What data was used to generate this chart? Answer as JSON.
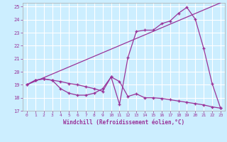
{
  "xlabel": "Windchill (Refroidissement éolien,°C)",
  "bg_color": "#cceeff",
  "grid_color": "#ffffff",
  "line_color": "#993399",
  "xlim": [
    -0.5,
    23.5
  ],
  "ylim": [
    17,
    25.3
  ],
  "xticks": [
    0,
    1,
    2,
    3,
    4,
    5,
    6,
    7,
    8,
    9,
    10,
    11,
    12,
    13,
    14,
    15,
    16,
    17,
    18,
    19,
    20,
    21,
    22,
    23
  ],
  "yticks": [
    17,
    18,
    19,
    20,
    21,
    22,
    23,
    24,
    25
  ],
  "series1_x": [
    0,
    23
  ],
  "series1_y": [
    19.0,
    25.3
  ],
  "series2_x": [
    0,
    1,
    2,
    3,
    4,
    5,
    6,
    7,
    8,
    9,
    10,
    11,
    12,
    13,
    14,
    15,
    16,
    17,
    18,
    19,
    20,
    21,
    22,
    23
  ],
  "series2_y": [
    19.0,
    19.35,
    19.45,
    19.35,
    18.7,
    18.35,
    18.2,
    18.2,
    18.35,
    18.7,
    19.6,
    17.5,
    21.1,
    23.1,
    23.2,
    23.2,
    23.7,
    23.9,
    24.5,
    24.95,
    24.05,
    21.8,
    19.1,
    17.2
  ],
  "series3_x": [
    0,
    1,
    2,
    3,
    4,
    5,
    6,
    7,
    8,
    9,
    10,
    11,
    12,
    13,
    14,
    15,
    16,
    17,
    18,
    19,
    20,
    21,
    22,
    23
  ],
  "series3_y": [
    19.0,
    19.35,
    19.45,
    19.35,
    19.25,
    19.1,
    19.0,
    18.85,
    18.7,
    18.5,
    19.6,
    19.25,
    18.1,
    18.3,
    18.0,
    18.0,
    17.95,
    17.85,
    17.75,
    17.65,
    17.55,
    17.45,
    17.3,
    17.2
  ]
}
